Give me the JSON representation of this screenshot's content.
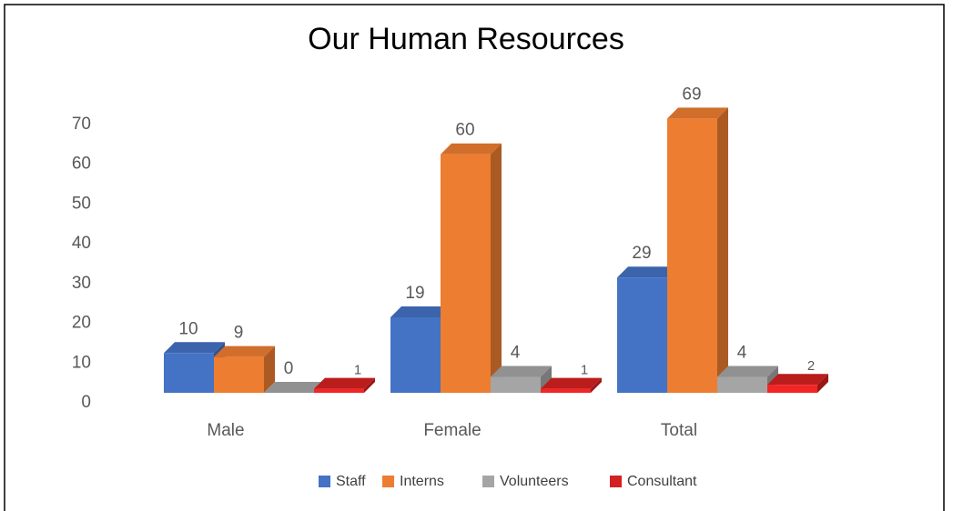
{
  "chart_data": {
    "type": "bar3d",
    "title": "Our Human Resources",
    "categories": [
      "Male",
      "Female",
      "Total"
    ],
    "series": [
      {
        "name": "Staff",
        "color": "#4472c4",
        "values": [
          10,
          19,
          29
        ]
      },
      {
        "name": "Interns",
        "color": "#ed7d31",
        "values": [
          9,
          60,
          69
        ]
      },
      {
        "name": "Volunteers",
        "color": "#a5a5a5",
        "values": [
          0,
          4,
          4
        ]
      },
      {
        "name": "Consultant",
        "color": "#d42020",
        "values": [
          1,
          1,
          2
        ]
      }
    ],
    "ylim": [
      0,
      70
    ],
    "yticks": [
      0,
      10,
      20,
      30,
      40,
      50,
      60,
      70
    ],
    "grid": false,
    "legend": "bottom"
  }
}
